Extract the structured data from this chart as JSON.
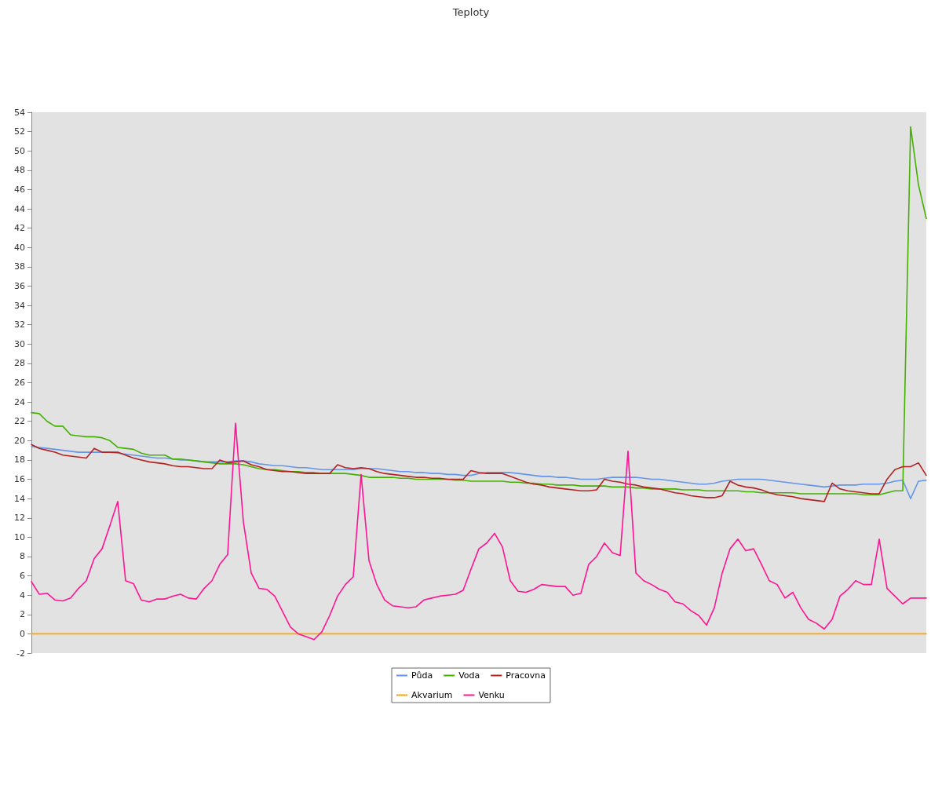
{
  "chart_data": {
    "type": "line",
    "title": "Teploty",
    "categories": [
      null,
      null,
      null,
      null,
      null,
      null,
      null,
      null,
      null,
      null,
      null,
      null,
      null,
      null,
      null,
      null,
      null,
      null,
      null,
      null,
      null,
      null,
      null,
      null,
      null,
      null,
      null,
      null,
      null,
      null,
      null,
      null,
      null,
      null,
      null,
      null,
      null,
      null,
      null,
      null,
      null,
      null,
      null,
      null,
      null,
      null,
      null,
      null,
      null,
      null,
      null,
      null,
      null,
      null,
      null,
      null,
      null,
      null,
      null,
      null,
      null,
      null,
      null,
      null,
      null,
      null,
      null,
      null,
      null,
      null,
      null,
      null,
      null,
      null,
      null,
      null,
      null,
      null,
      null,
      null,
      null,
      null,
      null,
      null,
      null,
      null,
      null,
      null,
      null,
      null,
      null,
      null,
      null,
      null,
      null,
      null,
      null,
      null,
      null,
      null,
      null,
      null,
      null,
      null,
      null,
      null,
      null,
      null,
      null,
      null,
      null,
      null,
      null,
      null,
      null
    ],
    "series": [
      {
        "name": "Půda",
        "color": "#6495ed",
        "values": [
          19.4,
          19.3,
          19.2,
          19.1,
          19.0,
          18.9,
          18.8,
          18.8,
          18.8,
          18.8,
          18.8,
          18.7,
          18.6,
          18.5,
          18.4,
          18.3,
          18.2,
          18.2,
          18.1,
          18.0,
          18.0,
          17.9,
          17.8,
          17.8,
          17.8,
          17.8,
          17.9,
          17.9,
          17.8,
          17.6,
          17.5,
          17.4,
          17.4,
          17.3,
          17.2,
          17.2,
          17.1,
          17.0,
          17.0,
          17.0,
          17.0,
          17.0,
          17.1,
          17.1,
          17.1,
          17.0,
          16.9,
          16.8,
          16.8,
          16.7,
          16.7,
          16.6,
          16.6,
          16.5,
          16.5,
          16.4,
          16.4,
          16.6,
          16.7,
          16.7,
          16.7,
          16.7,
          16.6,
          16.5,
          16.4,
          16.3,
          16.3,
          16.2,
          16.2,
          16.1,
          16.0,
          16.0,
          16.0,
          16.1,
          16.2,
          16.2,
          16.2,
          16.2,
          16.1,
          16.0,
          16.0,
          15.9,
          15.8,
          15.7,
          15.6,
          15.5,
          15.5,
          15.6,
          15.8,
          15.9,
          16.0,
          16.0,
          16.0,
          16.0,
          15.9,
          15.8,
          15.7,
          15.6,
          15.5,
          15.4,
          15.3,
          15.2,
          15.3,
          15.4,
          15.4,
          15.4,
          15.5,
          15.5,
          15.5,
          15.6,
          15.8,
          15.9,
          14.0,
          15.8,
          15.9
        ]
      },
      {
        "name": "Voda",
        "color": "#44b000",
        "values": [
          22.9,
          22.8,
          22.0,
          21.5,
          21.5,
          20.6,
          20.5,
          20.4,
          20.4,
          20.3,
          20.0,
          19.3,
          19.2,
          19.1,
          18.7,
          18.5,
          18.5,
          18.5,
          18.1,
          18.1,
          18.0,
          17.9,
          17.8,
          17.7,
          17.6,
          17.6,
          17.6,
          17.5,
          17.3,
          17.1,
          17.0,
          17.0,
          16.9,
          16.8,
          16.8,
          16.7,
          16.7,
          16.6,
          16.6,
          16.6,
          16.6,
          16.5,
          16.4,
          16.2,
          16.2,
          16.2,
          16.2,
          16.1,
          16.1,
          16.0,
          16.0,
          16.0,
          16.0,
          16.0,
          15.9,
          15.9,
          15.8,
          15.8,
          15.8,
          15.8,
          15.8,
          15.7,
          15.7,
          15.6,
          15.6,
          15.5,
          15.5,
          15.4,
          15.4,
          15.4,
          15.3,
          15.3,
          15.3,
          15.3,
          15.2,
          15.2,
          15.2,
          15.1,
          15.1,
          15.0,
          15.0,
          15.0,
          15.0,
          14.9,
          14.9,
          14.9,
          14.8,
          14.8,
          14.8,
          14.8,
          14.8,
          14.7,
          14.7,
          14.6,
          14.6,
          14.6,
          14.6,
          14.6,
          14.5,
          14.5,
          14.5,
          14.5,
          14.5,
          14.5,
          14.5,
          14.5,
          14.4,
          14.4,
          14.4,
          14.6,
          14.8,
          14.8,
          52.5,
          46.5,
          43.0
        ]
      },
      {
        "name": "Pracovna",
        "color": "#b22222",
        "values": [
          19.6,
          19.2,
          19.0,
          18.8,
          18.5,
          18.4,
          18.3,
          18.2,
          19.2,
          18.8,
          18.8,
          18.8,
          18.5,
          18.2,
          18.0,
          17.8,
          17.7,
          17.6,
          17.4,
          17.3,
          17.3,
          17.2,
          17.1,
          17.1,
          18.0,
          17.7,
          17.8,
          17.9,
          17.5,
          17.3,
          17.0,
          16.9,
          16.8,
          16.8,
          16.7,
          16.6,
          16.6,
          16.6,
          16.6,
          17.5,
          17.2,
          17.1,
          17.2,
          17.1,
          16.8,
          16.6,
          16.5,
          16.4,
          16.3,
          16.2,
          16.2,
          16.1,
          16.1,
          16.0,
          16.0,
          16.0,
          16.9,
          16.7,
          16.6,
          16.6,
          16.6,
          16.3,
          16.0,
          15.7,
          15.5,
          15.4,
          15.2,
          15.1,
          15.0,
          14.9,
          14.8,
          14.8,
          14.9,
          16.0,
          15.8,
          15.7,
          15.5,
          15.4,
          15.2,
          15.1,
          15.0,
          14.8,
          14.6,
          14.5,
          14.3,
          14.2,
          14.1,
          14.1,
          14.3,
          15.8,
          15.4,
          15.2,
          15.1,
          14.9,
          14.6,
          14.4,
          14.3,
          14.2,
          14.0,
          13.9,
          13.8,
          13.7,
          15.6,
          15.0,
          14.8,
          14.7,
          14.6,
          14.5,
          14.5,
          16.0,
          17.0,
          17.3,
          17.3,
          17.7,
          16.4
        ]
      },
      {
        "name": "Akvarium",
        "color": "#ffa500",
        "values": [
          0,
          0,
          0,
          0,
          0,
          0,
          0,
          0,
          0,
          0,
          0,
          0,
          0,
          0,
          0,
          0,
          0,
          0,
          0,
          0,
          0,
          0,
          0,
          0,
          0,
          0,
          0,
          0,
          0,
          0,
          0,
          0,
          0,
          0,
          0,
          0,
          0,
          0,
          0,
          0,
          0,
          0,
          0,
          0,
          0,
          0,
          0,
          0,
          0,
          0,
          0,
          0,
          0,
          0,
          0,
          0,
          0,
          0,
          0,
          0,
          0,
          0,
          0,
          0,
          0,
          0,
          0,
          0,
          0,
          0,
          0,
          0,
          0,
          0,
          0,
          0,
          0,
          0,
          0,
          0,
          0,
          0,
          0,
          0,
          0,
          0,
          0,
          0,
          0,
          0,
          0,
          0,
          0,
          0,
          0,
          0,
          0,
          0,
          0,
          0,
          0,
          0,
          0,
          0,
          0,
          0,
          0,
          0,
          0,
          0,
          0,
          0,
          0,
          0,
          0
        ]
      },
      {
        "name": "Venku",
        "color": "#ff1493",
        "values": [
          5.4,
          4.1,
          4.2,
          3.5,
          3.4,
          3.7,
          4.7,
          5.5,
          7.8,
          8.8,
          11.2,
          13.7,
          5.5,
          5.2,
          3.5,
          3.3,
          3.6,
          3.6,
          3.9,
          4.1,
          3.7,
          3.6,
          4.7,
          5.5,
          7.2,
          8.2,
          21.8,
          11.6,
          6.3,
          4.7,
          4.6,
          3.9,
          2.3,
          0.7,
          0.0,
          -0.3,
          -0.6,
          0.2,
          1.9,
          3.9,
          5.1,
          5.9,
          16.5,
          7.6,
          5.1,
          3.5,
          2.9,
          2.8,
          2.7,
          2.8,
          3.5,
          3.7,
          3.9,
          4.0,
          4.1,
          4.5,
          6.7,
          8.8,
          9.4,
          10.4,
          9.0,
          5.5,
          4.4,
          4.3,
          4.6,
          5.1,
          5.0,
          4.9,
          4.9,
          4.0,
          4.2,
          7.2,
          8.0,
          9.4,
          8.4,
          8.1,
          18.9,
          6.3,
          5.5,
          5.1,
          4.6,
          4.3,
          3.3,
          3.1,
          2.4,
          1.9,
          0.9,
          2.7,
          6.3,
          8.8,
          9.8,
          8.6,
          8.8,
          7.2,
          5.5,
          5.1,
          3.7,
          4.3,
          2.7,
          1.5,
          1.1,
          0.5,
          1.5,
          3.9,
          4.6,
          5.5,
          5.1,
          5.1,
          9.8,
          4.7,
          3.9,
          3.1,
          3.7,
          3.7,
          3.7
        ]
      }
    ],
    "ylim": [
      -2,
      54
    ],
    "yticks": [
      -2,
      0,
      2,
      4,
      6,
      8,
      10,
      12,
      14,
      16,
      18,
      20,
      22,
      24,
      26,
      28,
      30,
      32,
      34,
      36,
      38,
      40,
      42,
      44,
      46,
      48,
      50,
      52,
      54
    ],
    "grid": false,
    "legend": "bottom",
    "tick_labels": "y",
    "marker": "none",
    "line_style": "solid"
  }
}
